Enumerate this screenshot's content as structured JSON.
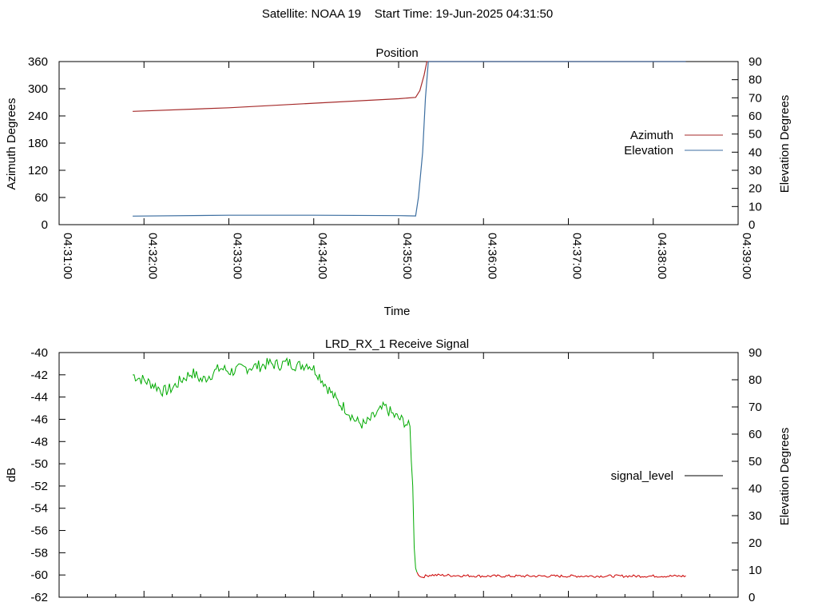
{
  "figure_title": "Satellite: NOAA 19    Start Time: 19-Jun-2025 04:31:50",
  "colors": {
    "azimuth": "#a52a2a",
    "elevation": "#3c6ea0",
    "signal_green": "#00aa00",
    "signal_red": "#cc0000",
    "legend_signal": "#000000"
  },
  "chart_data": [
    {
      "type": "line",
      "title": "Position",
      "xlabel": "Time",
      "ylabel": "Azimuth Degrees",
      "y2label": "Elevation Degrees",
      "xlim": [
        "04:31:00",
        "04:39:00"
      ],
      "x_ticks": [
        "04:31:00",
        "04:32:00",
        "04:33:00",
        "04:34:00",
        "04:35:00",
        "04:36:00",
        "04:37:00",
        "04:38:00",
        "04:39:00"
      ],
      "ylim": [
        0,
        360
      ],
      "y_ticks": [
        "0",
        "60",
        "120",
        "180",
        "240",
        "300",
        "360"
      ],
      "y2lim": [
        0,
        90
      ],
      "y2_ticks": [
        "0",
        "10",
        "20",
        "30",
        "40",
        "50",
        "60",
        "70",
        "80",
        "90"
      ],
      "legend_position": "right",
      "grid": false,
      "series": [
        {
          "name": "Azimuth",
          "axis": "y",
          "x": [
            "04:31:52",
            "04:33:00",
            "04:34:00",
            "04:35:00",
            "04:35:12",
            "04:35:15",
            "04:35:18",
            "04:35:20",
            "04:38:23"
          ],
          "y": [
            250,
            258,
            268,
            278,
            281,
            296,
            330,
            360,
            360
          ]
        },
        {
          "name": "Elevation",
          "axis": "y2",
          "x": [
            "04:31:52",
            "04:33:00",
            "04:34:00",
            "04:35:00",
            "04:35:12",
            "04:35:14",
            "04:35:17",
            "04:35:19",
            "04:35:21",
            "04:38:23"
          ],
          "y": [
            4.7,
            5.2,
            5.2,
            5.0,
            4.8,
            15,
            40,
            70,
            90,
            90
          ]
        }
      ]
    },
    {
      "type": "line",
      "title": "LRD_RX_1 Receive Signal",
      "ylabel": "dB",
      "y2label": "Elevation Degrees",
      "xlim": [
        "04:31:00",
        "04:39:00"
      ],
      "ylim": [
        -62,
        -40
      ],
      "y_ticks": [
        "-62",
        "-60",
        "-58",
        "-56",
        "-54",
        "-52",
        "-50",
        "-48",
        "-46",
        "-44",
        "-42",
        "-40"
      ],
      "y2lim": [
        0,
        90
      ],
      "y2_ticks": [
        "0",
        "10",
        "20",
        "30",
        "40",
        "50",
        "60",
        "70",
        "80",
        "90"
      ],
      "legend_position": "right",
      "grid": false,
      "series": [
        {
          "name": "signal_level",
          "axis": "y",
          "x": [
            "04:31:52",
            "04:32:00",
            "04:32:07",
            "04:32:14",
            "04:32:20",
            "04:32:27",
            "04:32:34",
            "04:32:41",
            "04:32:48",
            "04:32:54",
            "04:33:01",
            "04:33:08",
            "04:33:15",
            "04:33:22",
            "04:33:28",
            "04:33:35",
            "04:33:42",
            "04:33:49",
            "04:33:56",
            "04:34:02",
            "04:34:09",
            "04:34:16",
            "04:34:23",
            "04:34:30",
            "04:34:36",
            "04:34:43",
            "04:34:50",
            "04:34:57",
            "04:35:04",
            "04:35:08",
            "04:35:10",
            "04:35:11",
            "04:35:12",
            "04:35:13",
            "04:35:16",
            "04:35:22",
            "04:36:00",
            "04:37:00",
            "04:38:00",
            "04:38:23"
          ],
          "y": [
            -42.0,
            -42.5,
            -42.9,
            -43.5,
            -43.2,
            -42.4,
            -41.8,
            -42.5,
            -41.9,
            -41.4,
            -41.7,
            -41.5,
            -41.3,
            -41.2,
            -41.0,
            -41.1,
            -40.9,
            -41.2,
            -41.0,
            -41.7,
            -43.0,
            -44.3,
            -45.1,
            -46.2,
            -46.5,
            -45.7,
            -44.9,
            -45.7,
            -46.2,
            -46.8,
            -52.0,
            -57.5,
            -59.4,
            -59.8,
            -60.2,
            -60.0,
            -60.1,
            -60.1,
            -60.1,
            -60.1
          ]
        }
      ]
    }
  ]
}
